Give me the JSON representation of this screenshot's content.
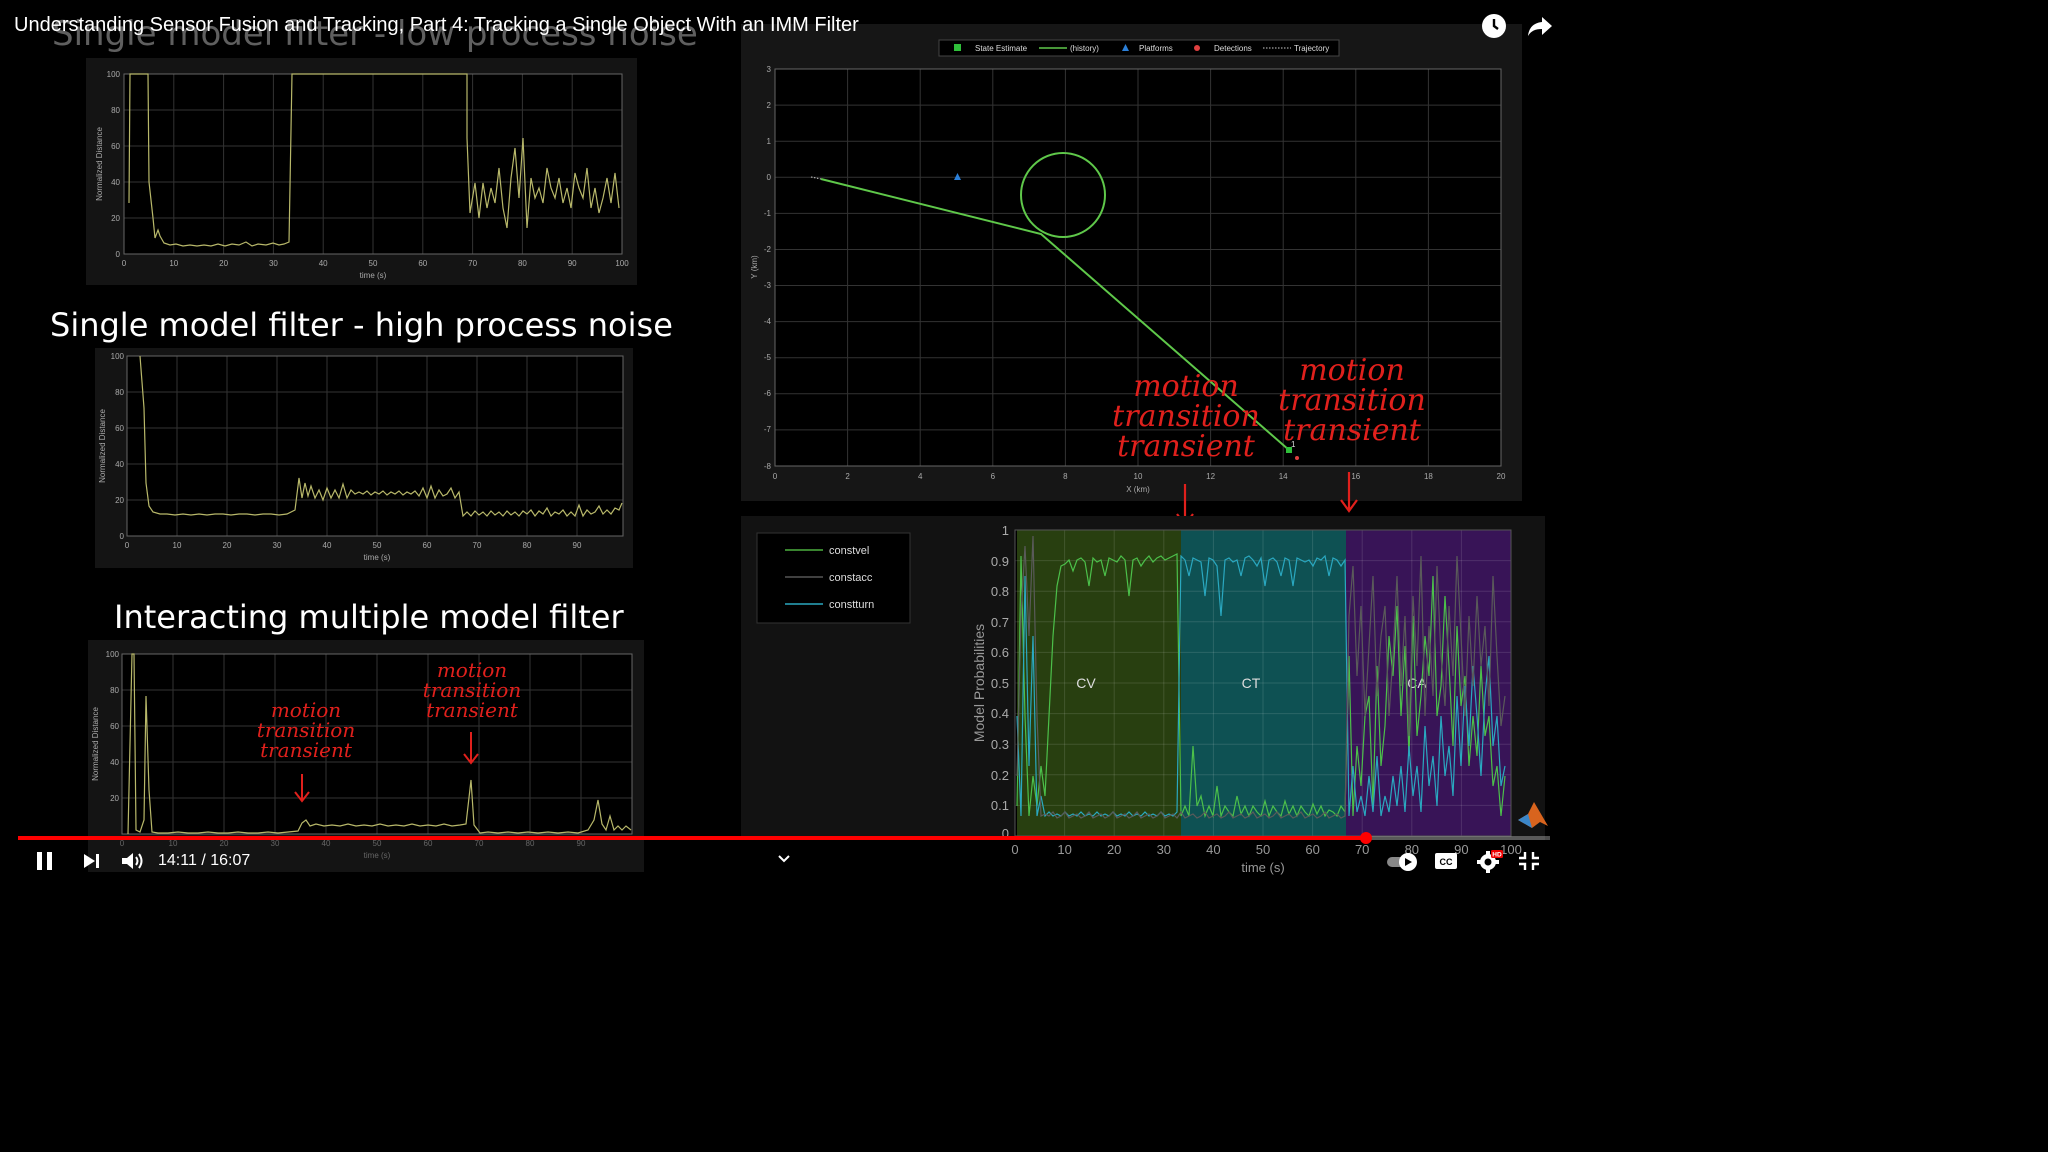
{
  "video": {
    "title": "Understanding Sensor Fusion and Tracking, Part 4: Tracking a Single Object With an IMM Filter",
    "current_time": "14:11",
    "duration": "16:07",
    "time_separator": "/",
    "progress": 0.88
  },
  "slide": {
    "heading_low": "Single model filter - low process noise",
    "heading_high": "Single model filter - high process noise",
    "heading_imm": "Interacting multiple model filter",
    "note_motion": "motion",
    "note_transition": "transition",
    "note_transient": "transient"
  },
  "plots": {
    "ylabel": "Normalized Distance",
    "xlabel": "time (s)",
    "yticks": [
      "100",
      "80",
      "60",
      "40",
      "20",
      "0"
    ],
    "xticks": [
      "0",
      "10",
      "20",
      "30",
      "40",
      "50",
      "60",
      "70",
      "80",
      "90",
      "100"
    ],
    "xticks_short": [
      "0",
      "10",
      "20",
      "30",
      "40",
      "50",
      "60",
      "70",
      "80",
      "90"
    ]
  },
  "traj": {
    "legend": [
      "State Estimate",
      "(history)",
      "Platforms",
      "Detections",
      "Trajectory"
    ],
    "xlabel": "X (km)",
    "ylabel": "Y (km)",
    "xticks": [
      "0",
      "2",
      "4",
      "6",
      "8",
      "10",
      "12",
      "14",
      "16",
      "18",
      "20"
    ],
    "yticks": [
      "3",
      "2",
      "1",
      "0",
      "-1",
      "-2",
      "-3",
      "-4",
      "-5",
      "-6",
      "-7",
      "-8"
    ],
    "track_id": "1"
  },
  "prob": {
    "legend": [
      "constvel",
      "constacc",
      "constturn"
    ],
    "ylabel": "Model Probabilities",
    "xlabel": "time (s)",
    "yticks": [
      "1",
      "0.9",
      "0.8",
      "0.7",
      "0.6",
      "0.5",
      "0.4",
      "0.3",
      "0.2",
      "0.1",
      "0"
    ],
    "xticks": [
      "0",
      "10",
      "20",
      "30",
      "40",
      "50",
      "60",
      "70",
      "80",
      "90",
      "100"
    ],
    "regions": [
      "CV",
      "CT",
      "CA"
    ]
  },
  "colors": {
    "accent_red": "#e0201c",
    "progress": "#ff0000",
    "track_green": "#5fc84a",
    "cv_region": "#2f4a13",
    "ct_region": "#0f5a5c",
    "ca_region": "#3e1660"
  },
  "icons": [
    "clock-icon",
    "share-icon",
    "pause-icon",
    "next-icon",
    "volume-icon",
    "chevron-down-icon",
    "autoplay-toggle-icon",
    "captions-icon",
    "settings-icon",
    "fullscreen-exit-icon",
    "matlab-logo-icon"
  ]
}
